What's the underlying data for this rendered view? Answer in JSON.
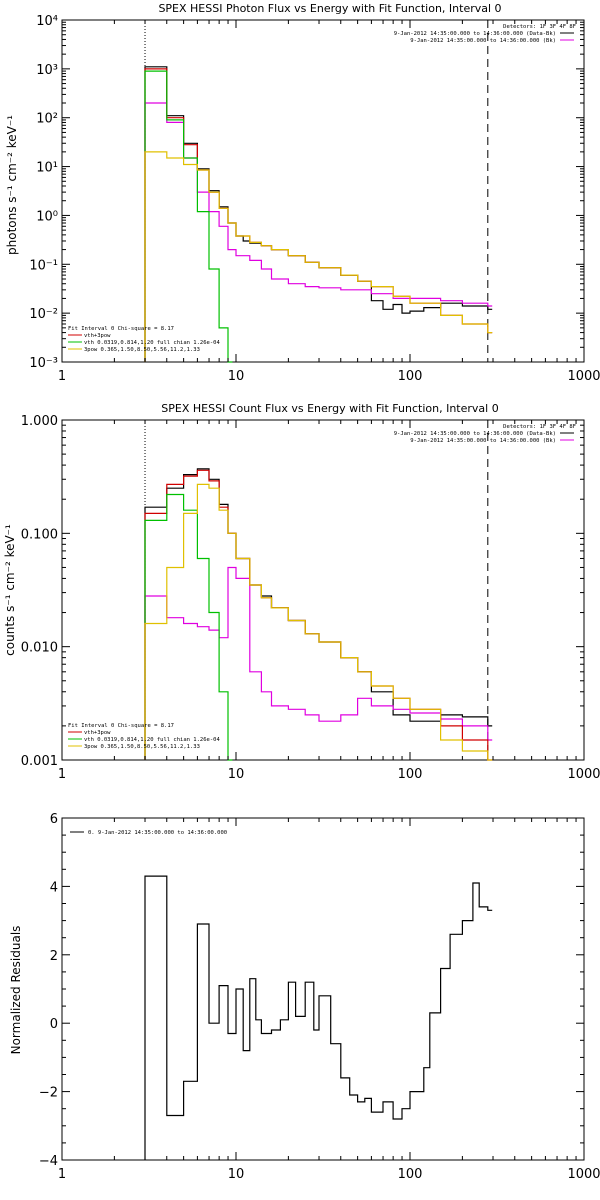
{
  "chart_data": [
    {
      "type": "line",
      "title": "SPEX HESSI Photon Flux vs Energy with Fit Function, Interval 0",
      "ylabel": "photons s⁻¹ cm⁻² keV⁻¹",
      "xlabel": "",
      "xscale": "log",
      "yscale": "log",
      "xlim": [
        1,
        1000
      ],
      "ylim": [
        0.001,
        10000
      ],
      "x_ticks": [
        "1",
        "10",
        "100",
        "1000"
      ],
      "y_ticks": [
        "10⁻³",
        "10⁻²",
        "10⁻¹",
        "10⁰",
        "10¹",
        "10²",
        "10³",
        "10⁴"
      ],
      "legend_top_right": [
        "Detectors: 1F 3F 4F 8F",
        "9-Jan-2012 14:35:00.000 to 14:36:00.000 (Data-Bk)",
        "9-Jan-2012 14:35:00.000 to 14:36:00.000 (Bk)"
      ],
      "legend_bottom_left": [
        "Fit Interval 0   Chi-square = 8.17",
        "vth+3pow",
        "vth 0.0319,0.814,1.20  full chian 1.26e-04",
        "3pow 0.365,1.50,8.50,5.56,11.2,1.33"
      ],
      "vlines": [
        3,
        280
      ],
      "series": [
        {
          "name": "Data-Bk",
          "color": "#000000",
          "x": [
            3,
            4,
            5,
            6,
            7,
            8,
            9,
            10,
            11,
            12,
            14,
            16,
            20,
            25,
            30,
            40,
            50,
            60,
            70,
            80,
            90,
            100,
            120,
            150,
            200,
            280
          ],
          "y": [
            1100,
            110,
            30,
            9,
            3.2,
            1.5,
            0.7,
            0.38,
            0.3,
            0.27,
            0.24,
            0.2,
            0.15,
            0.11,
            0.085,
            0.06,
            0.045,
            0.018,
            0.012,
            0.015,
            0.01,
            0.011,
            0.013,
            0.016,
            0.014,
            0.012
          ]
        },
        {
          "name": "Bk",
          "color": "#e000e0",
          "x": [
            3,
            4,
            5,
            6,
            7,
            8,
            9,
            10,
            12,
            14,
            16,
            20,
            25,
            30,
            40,
            50,
            60,
            80,
            100,
            150,
            200,
            280
          ],
          "y": [
            200,
            80,
            15,
            3,
            1.2,
            0.6,
            0.2,
            0.15,
            0.12,
            0.08,
            0.05,
            0.04,
            0.035,
            0.033,
            0.03,
            0.03,
            0.025,
            0.02,
            0.02,
            0.018,
            0.016,
            0.014
          ]
        },
        {
          "name": "vth+3pow",
          "color": "#d00000",
          "x": [
            3,
            4,
            5,
            6,
            7,
            8,
            9,
            10,
            12,
            14,
            16,
            20,
            25,
            30,
            40,
            50,
            60,
            80,
            100,
            150,
            200,
            280
          ],
          "y": [
            1000,
            100,
            28,
            8.5,
            3,
            1.4,
            0.7,
            0.38,
            0.28,
            0.24,
            0.2,
            0.15,
            0.11,
            0.085,
            0.06,
            0.045,
            0.035,
            0.022,
            0.016,
            0.009,
            0.006,
            0.004
          ]
        },
        {
          "name": "vth",
          "color": "#00c000",
          "x": [
            3,
            4,
            5,
            6,
            7,
            8,
            9
          ],
          "y": [
            900,
            90,
            15,
            1.2,
            0.08,
            0.005,
            0.001
          ]
        },
        {
          "name": "3pow",
          "color": "#e0c000",
          "x": [
            3,
            4,
            5,
            6,
            7,
            8,
            9,
            10,
            12,
            14,
            16,
            20,
            25,
            30,
            40,
            50,
            60,
            80,
            100,
            150,
            200,
            280
          ],
          "y": [
            20,
            15,
            11,
            8.5,
            3,
            1.4,
            0.7,
            0.38,
            0.28,
            0.24,
            0.2,
            0.15,
            0.11,
            0.085,
            0.06,
            0.045,
            0.035,
            0.022,
            0.016,
            0.009,
            0.006,
            0.004
          ]
        }
      ]
    },
    {
      "type": "line",
      "title": "SPEX HESSI Count Flux vs Energy with Fit Function, Interval 0",
      "ylabel": "counts s⁻¹ cm⁻² keV⁻¹",
      "xlabel": "",
      "xscale": "log",
      "yscale": "log",
      "xlim": [
        1,
        1000
      ],
      "ylim": [
        0.001,
        1.0
      ],
      "x_ticks": [
        "1",
        "10",
        "100",
        "1000"
      ],
      "y_ticks": [
        "0.001",
        "0.010",
        "0.100",
        "1.000"
      ],
      "legend_top_right": [
        "Detectors: 1F 3F 4F 8F",
        "9-Jan-2012 14:35:00.000 to 14:36:00.000 (Data-Bk)",
        "9-Jan-2012 14:35:00.000 to 14:36:00.000 (Bk)"
      ],
      "legend_bottom_left": [
        "Fit Interval 0   Chi-square = 8.17",
        "vth+3pow",
        "vth 0.0319,0.814,1.20  full chian 1.26e-04",
        "3pow 0.365,1.50,8.50,5.56,11.2,1.33"
      ],
      "vlines": [
        3,
        280
      ],
      "series": [
        {
          "name": "Data-Bk",
          "color": "#000000",
          "x": [
            3,
            4,
            5,
            6,
            7,
            8,
            9,
            10,
            12,
            14,
            16,
            20,
            25,
            30,
            40,
            50,
            60,
            80,
            100,
            150,
            200,
            280
          ],
          "y": [
            0.17,
            0.25,
            0.33,
            0.37,
            0.3,
            0.18,
            0.1,
            0.06,
            0.035,
            0.028,
            0.022,
            0.017,
            0.013,
            0.011,
            0.008,
            0.006,
            0.004,
            0.0025,
            0.0022,
            0.0025,
            0.0024,
            0.002
          ]
        },
        {
          "name": "Bk",
          "color": "#e000e0",
          "x": [
            3,
            4,
            5,
            6,
            7,
            8,
            9,
            10,
            12,
            14,
            16,
            20,
            25,
            30,
            40,
            50,
            60,
            80,
            100,
            150,
            200,
            280
          ],
          "y": [
            0.028,
            0.018,
            0.016,
            0.015,
            0.014,
            0.012,
            0.05,
            0.04,
            0.006,
            0.004,
            0.003,
            0.0028,
            0.0025,
            0.0022,
            0.0025,
            0.0035,
            0.003,
            0.0028,
            0.0026,
            0.0023,
            0.002,
            0.0015
          ]
        },
        {
          "name": "vth+3pow",
          "color": "#d00000",
          "x": [
            3,
            4,
            5,
            6,
            7,
            8,
            9,
            10,
            12,
            14,
            16,
            20,
            25,
            30,
            40,
            50,
            60,
            80,
            100,
            150,
            200,
            280
          ],
          "y": [
            0.15,
            0.27,
            0.32,
            0.36,
            0.29,
            0.17,
            0.1,
            0.06,
            0.035,
            0.027,
            0.022,
            0.017,
            0.013,
            0.011,
            0.008,
            0.006,
            0.0045,
            0.0035,
            0.0028,
            0.002,
            0.0015,
            0.001
          ]
        },
        {
          "name": "vth",
          "color": "#00c000",
          "x": [
            3,
            4,
            5,
            6,
            7,
            8,
            9
          ],
          "y": [
            0.13,
            0.22,
            0.16,
            0.06,
            0.02,
            0.004,
            0.001
          ]
        },
        {
          "name": "3pow",
          "color": "#e0c000",
          "x": [
            3,
            4,
            5,
            6,
            7,
            8,
            9,
            10,
            12,
            14,
            16,
            20,
            25,
            30,
            40,
            50,
            60,
            80,
            100,
            150,
            200,
            280
          ],
          "y": [
            0.016,
            0.05,
            0.15,
            0.27,
            0.25,
            0.16,
            0.1,
            0.06,
            0.035,
            0.027,
            0.022,
            0.017,
            0.013,
            0.011,
            0.008,
            0.006,
            0.0045,
            0.0035,
            0.0028,
            0.0015,
            0.0012,
            0.001
          ]
        }
      ]
    },
    {
      "type": "line",
      "title": "",
      "ylabel": "Normalized Residuals",
      "xlabel": "",
      "xscale": "log",
      "yscale": "linear",
      "xlim": [
        1,
        1000
      ],
      "ylim": [
        -4,
        6
      ],
      "x_ticks": [
        "1",
        "10",
        "100",
        "1000"
      ],
      "y_ticks": [
        "−4",
        "−2",
        "0",
        "2",
        "4",
        "6"
      ],
      "legend_top_left": [
        "0.  9-Jan-2012 14:35:00.000 to 14:36:00.000"
      ],
      "series": [
        {
          "name": "0.",
          "color": "#000000",
          "x": [
            3,
            4,
            5,
            6,
            7,
            8,
            9,
            10,
            11,
            12,
            13,
            14,
            16,
            18,
            20,
            22,
            25,
            28,
            30,
            35,
            40,
            45,
            50,
            55,
            60,
            70,
            80,
            90,
            100,
            120,
            130,
            150,
            170,
            200,
            230,
            250,
            280
          ],
          "y": [
            4.3,
            -2.7,
            -1.7,
            2.9,
            0,
            1.1,
            -0.3,
            1,
            -0.8,
            1.3,
            0.1,
            -0.3,
            -0.2,
            0.1,
            1.2,
            0.2,
            1.2,
            -0.2,
            0.8,
            -0.6,
            -1.6,
            -2.1,
            -2.3,
            -2.2,
            -2.6,
            -2.3,
            -2.8,
            -2.5,
            -2.0,
            -1.3,
            0.3,
            1.6,
            2.6,
            3.0,
            4.1,
            3.4,
            3.3
          ]
        }
      ]
    }
  ]
}
